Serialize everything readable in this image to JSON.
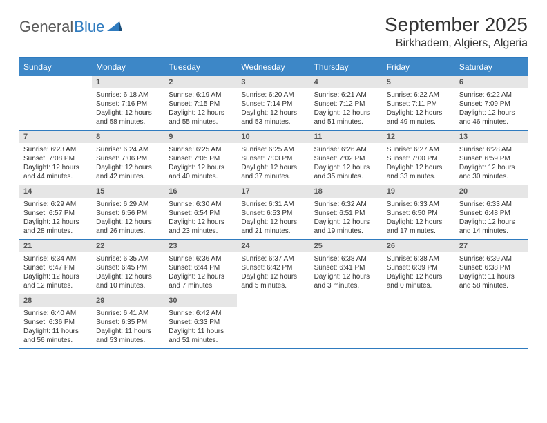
{
  "logo": {
    "text1": "General",
    "text2": "Blue"
  },
  "title": "September 2025",
  "location": "Birkhadem, Algiers, Algeria",
  "colors": {
    "header_bg": "#3d87c7",
    "header_text": "#ffffff",
    "border": "#2f7bbf",
    "daynum_bg": "#e6e6e6",
    "daynum_text": "#555555",
    "body_text": "#333333",
    "logo_gray": "#5a5a5a",
    "logo_blue": "#2f7bbf"
  },
  "day_headers": [
    "Sunday",
    "Monday",
    "Tuesday",
    "Wednesday",
    "Thursday",
    "Friday",
    "Saturday"
  ],
  "weeks": [
    [
      {
        "day": "",
        "sunrise": "",
        "sunset": "",
        "daylight": ""
      },
      {
        "day": "1",
        "sunrise": "Sunrise: 6:18 AM",
        "sunset": "Sunset: 7:16 PM",
        "daylight": "Daylight: 12 hours and 58 minutes."
      },
      {
        "day": "2",
        "sunrise": "Sunrise: 6:19 AM",
        "sunset": "Sunset: 7:15 PM",
        "daylight": "Daylight: 12 hours and 55 minutes."
      },
      {
        "day": "3",
        "sunrise": "Sunrise: 6:20 AM",
        "sunset": "Sunset: 7:14 PM",
        "daylight": "Daylight: 12 hours and 53 minutes."
      },
      {
        "day": "4",
        "sunrise": "Sunrise: 6:21 AM",
        "sunset": "Sunset: 7:12 PM",
        "daylight": "Daylight: 12 hours and 51 minutes."
      },
      {
        "day": "5",
        "sunrise": "Sunrise: 6:22 AM",
        "sunset": "Sunset: 7:11 PM",
        "daylight": "Daylight: 12 hours and 49 minutes."
      },
      {
        "day": "6",
        "sunrise": "Sunrise: 6:22 AM",
        "sunset": "Sunset: 7:09 PM",
        "daylight": "Daylight: 12 hours and 46 minutes."
      }
    ],
    [
      {
        "day": "7",
        "sunrise": "Sunrise: 6:23 AM",
        "sunset": "Sunset: 7:08 PM",
        "daylight": "Daylight: 12 hours and 44 minutes."
      },
      {
        "day": "8",
        "sunrise": "Sunrise: 6:24 AM",
        "sunset": "Sunset: 7:06 PM",
        "daylight": "Daylight: 12 hours and 42 minutes."
      },
      {
        "day": "9",
        "sunrise": "Sunrise: 6:25 AM",
        "sunset": "Sunset: 7:05 PM",
        "daylight": "Daylight: 12 hours and 40 minutes."
      },
      {
        "day": "10",
        "sunrise": "Sunrise: 6:25 AM",
        "sunset": "Sunset: 7:03 PM",
        "daylight": "Daylight: 12 hours and 37 minutes."
      },
      {
        "day": "11",
        "sunrise": "Sunrise: 6:26 AM",
        "sunset": "Sunset: 7:02 PM",
        "daylight": "Daylight: 12 hours and 35 minutes."
      },
      {
        "day": "12",
        "sunrise": "Sunrise: 6:27 AM",
        "sunset": "Sunset: 7:00 PM",
        "daylight": "Daylight: 12 hours and 33 minutes."
      },
      {
        "day": "13",
        "sunrise": "Sunrise: 6:28 AM",
        "sunset": "Sunset: 6:59 PM",
        "daylight": "Daylight: 12 hours and 30 minutes."
      }
    ],
    [
      {
        "day": "14",
        "sunrise": "Sunrise: 6:29 AM",
        "sunset": "Sunset: 6:57 PM",
        "daylight": "Daylight: 12 hours and 28 minutes."
      },
      {
        "day": "15",
        "sunrise": "Sunrise: 6:29 AM",
        "sunset": "Sunset: 6:56 PM",
        "daylight": "Daylight: 12 hours and 26 minutes."
      },
      {
        "day": "16",
        "sunrise": "Sunrise: 6:30 AM",
        "sunset": "Sunset: 6:54 PM",
        "daylight": "Daylight: 12 hours and 23 minutes."
      },
      {
        "day": "17",
        "sunrise": "Sunrise: 6:31 AM",
        "sunset": "Sunset: 6:53 PM",
        "daylight": "Daylight: 12 hours and 21 minutes."
      },
      {
        "day": "18",
        "sunrise": "Sunrise: 6:32 AM",
        "sunset": "Sunset: 6:51 PM",
        "daylight": "Daylight: 12 hours and 19 minutes."
      },
      {
        "day": "19",
        "sunrise": "Sunrise: 6:33 AM",
        "sunset": "Sunset: 6:50 PM",
        "daylight": "Daylight: 12 hours and 17 minutes."
      },
      {
        "day": "20",
        "sunrise": "Sunrise: 6:33 AM",
        "sunset": "Sunset: 6:48 PM",
        "daylight": "Daylight: 12 hours and 14 minutes."
      }
    ],
    [
      {
        "day": "21",
        "sunrise": "Sunrise: 6:34 AM",
        "sunset": "Sunset: 6:47 PM",
        "daylight": "Daylight: 12 hours and 12 minutes."
      },
      {
        "day": "22",
        "sunrise": "Sunrise: 6:35 AM",
        "sunset": "Sunset: 6:45 PM",
        "daylight": "Daylight: 12 hours and 10 minutes."
      },
      {
        "day": "23",
        "sunrise": "Sunrise: 6:36 AM",
        "sunset": "Sunset: 6:44 PM",
        "daylight": "Daylight: 12 hours and 7 minutes."
      },
      {
        "day": "24",
        "sunrise": "Sunrise: 6:37 AM",
        "sunset": "Sunset: 6:42 PM",
        "daylight": "Daylight: 12 hours and 5 minutes."
      },
      {
        "day": "25",
        "sunrise": "Sunrise: 6:38 AM",
        "sunset": "Sunset: 6:41 PM",
        "daylight": "Daylight: 12 hours and 3 minutes."
      },
      {
        "day": "26",
        "sunrise": "Sunrise: 6:38 AM",
        "sunset": "Sunset: 6:39 PM",
        "daylight": "Daylight: 12 hours and 0 minutes."
      },
      {
        "day": "27",
        "sunrise": "Sunrise: 6:39 AM",
        "sunset": "Sunset: 6:38 PM",
        "daylight": "Daylight: 11 hours and 58 minutes."
      }
    ],
    [
      {
        "day": "28",
        "sunrise": "Sunrise: 6:40 AM",
        "sunset": "Sunset: 6:36 PM",
        "daylight": "Daylight: 11 hours and 56 minutes."
      },
      {
        "day": "29",
        "sunrise": "Sunrise: 6:41 AM",
        "sunset": "Sunset: 6:35 PM",
        "daylight": "Daylight: 11 hours and 53 minutes."
      },
      {
        "day": "30",
        "sunrise": "Sunrise: 6:42 AM",
        "sunset": "Sunset: 6:33 PM",
        "daylight": "Daylight: 11 hours and 51 minutes."
      },
      {
        "day": "",
        "sunrise": "",
        "sunset": "",
        "daylight": ""
      },
      {
        "day": "",
        "sunrise": "",
        "sunset": "",
        "daylight": ""
      },
      {
        "day": "",
        "sunrise": "",
        "sunset": "",
        "daylight": ""
      },
      {
        "day": "",
        "sunrise": "",
        "sunset": "",
        "daylight": ""
      }
    ]
  ]
}
